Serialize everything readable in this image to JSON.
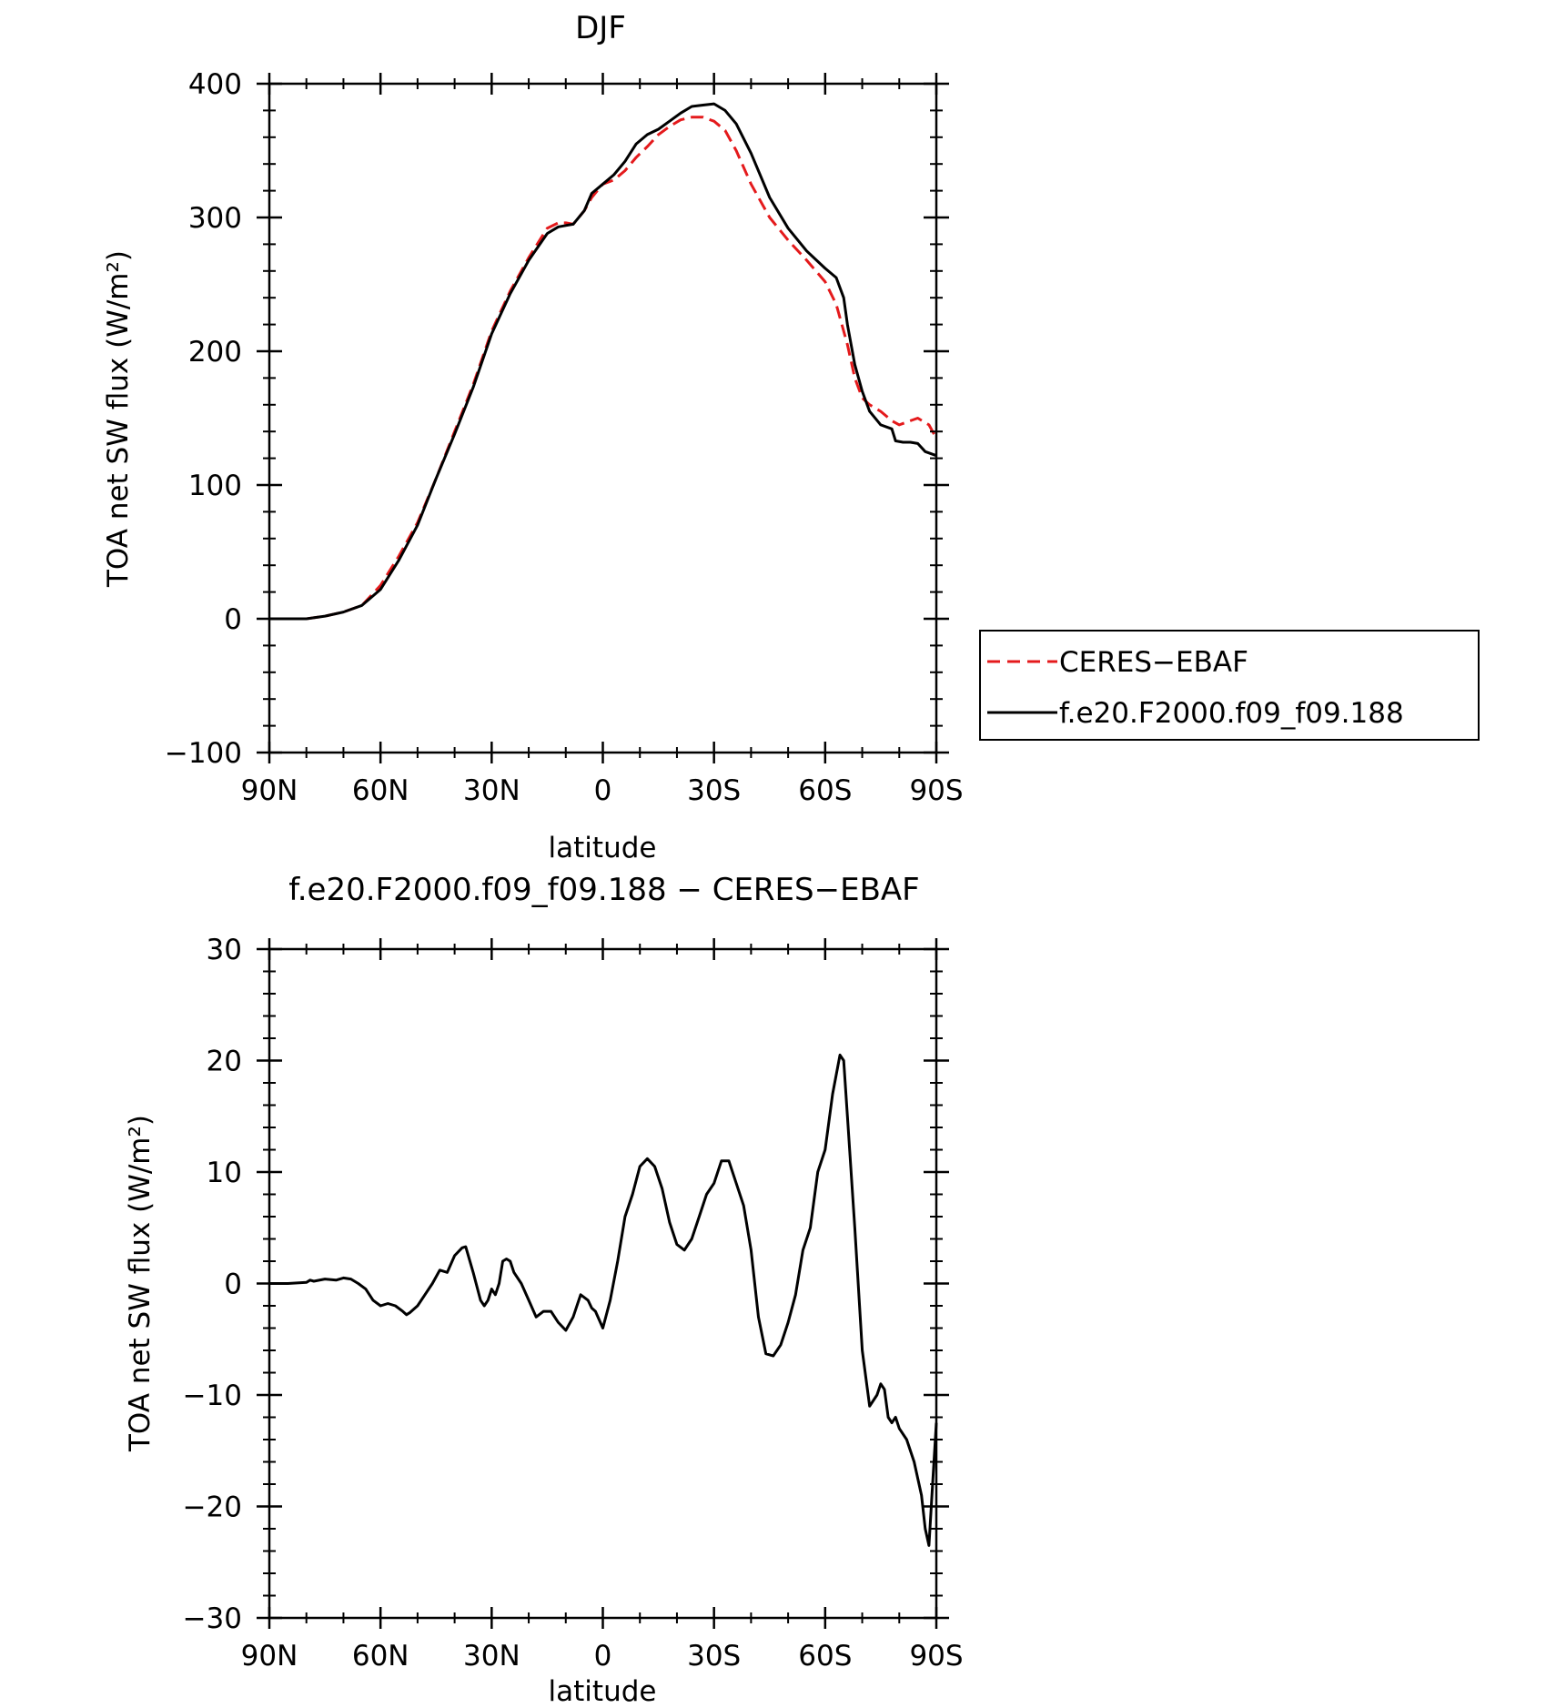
{
  "chart_data": [
    {
      "type": "line",
      "title": "DJF",
      "xlabel": "latitude",
      "ylabel": "TOA net SW flux (W/m²)",
      "xlim": [
        90,
        -90
      ],
      "ylim": [
        -100,
        400
      ],
      "xticks": [
        {
          "value": 90,
          "label": "90N"
        },
        {
          "value": 60,
          "label": "60N"
        },
        {
          "value": 30,
          "label": "30N"
        },
        {
          "value": 0,
          "label": "0"
        },
        {
          "value": -30,
          "label": "30S"
        },
        {
          "value": -60,
          "label": "60S"
        },
        {
          "value": -90,
          "label": "90S"
        }
      ],
      "yticks": [
        {
          "value": 400,
          "label": "400"
        },
        {
          "value": 300,
          "label": "300"
        },
        {
          "value": 200,
          "label": "200"
        },
        {
          "value": 100,
          "label": "100"
        },
        {
          "value": 0,
          "label": "0"
        },
        {
          "value": -100,
          "label": "−100"
        }
      ],
      "legend": {
        "placement": "right"
      },
      "series": [
        {
          "name": "CERES−EBAF",
          "color": "#e41a1c",
          "dash": "dashed",
          "x": [
            90,
            80,
            75,
            70,
            65,
            60,
            55,
            50,
            45,
            40,
            35,
            30,
            25,
            20,
            15,
            12,
            10,
            8,
            5,
            3,
            0,
            -3,
            -6,
            -9,
            -12,
            -15,
            -18,
            -21,
            -24,
            -27,
            -30,
            -33,
            -36,
            -40,
            -45,
            -50,
            -55,
            -60,
            -63,
            -66,
            -68,
            -70,
            -72,
            -75,
            -78,
            -80,
            -83,
            -85,
            -88,
            -90
          ],
          "y": [
            0,
            0,
            2,
            5,
            10,
            25,
            47,
            72,
            105,
            140,
            175,
            215,
            245,
            270,
            292,
            296,
            296,
            295,
            305,
            315,
            325,
            328,
            335,
            345,
            353,
            362,
            368,
            373,
            375,
            375,
            372,
            365,
            350,
            325,
            300,
            283,
            268,
            252,
            235,
            205,
            180,
            165,
            160,
            155,
            148,
            145,
            148,
            150,
            145,
            135
          ]
        },
        {
          "name": "f.e20.F2000.f09_f09.188",
          "color": "#000000",
          "dash": "solid",
          "x": [
            90,
            80,
            75,
            70,
            65,
            60,
            55,
            50,
            45,
            40,
            35,
            30,
            25,
            20,
            15,
            12,
            10,
            8,
            5,
            3,
            0,
            -3,
            -6,
            -9,
            -12,
            -15,
            -18,
            -21,
            -24,
            -27,
            -30,
            -33,
            -36,
            -40,
            -45,
            -50,
            -55,
            -60,
            -63,
            -65,
            -66,
            -68,
            -70,
            -72,
            -75,
            -78,
            -79,
            -81,
            -83,
            -85,
            -87,
            -90
          ],
          "y": [
            0,
            0,
            2,
            5,
            10,
            22,
            44,
            70,
            105,
            138,
            173,
            213,
            243,
            268,
            288,
            293,
            294,
            295,
            305,
            318,
            325,
            332,
            342,
            355,
            362,
            366,
            372,
            378,
            383,
            384,
            385,
            380,
            370,
            348,
            315,
            292,
            275,
            262,
            255,
            240,
            220,
            190,
            170,
            155,
            145,
            142,
            133,
            132,
            132,
            131,
            125,
            122
          ]
        }
      ]
    },
    {
      "type": "line",
      "title": "f.e20.F2000.f09_f09.188 − CERES−EBAF",
      "xlabel": "latitude",
      "ylabel": "TOA net SW flux (W/m²)",
      "xlim": [
        90,
        -90
      ],
      "ylim": [
        -30,
        30
      ],
      "xticks": [
        {
          "value": 90,
          "label": "90N"
        },
        {
          "value": 60,
          "label": "60N"
        },
        {
          "value": 30,
          "label": "30N"
        },
        {
          "value": 0,
          "label": "0"
        },
        {
          "value": -30,
          "label": "30S"
        },
        {
          "value": -60,
          "label": "60S"
        },
        {
          "value": -90,
          "label": "90S"
        }
      ],
      "yticks": [
        {
          "value": 30,
          "label": "30"
        },
        {
          "value": 20,
          "label": "20"
        },
        {
          "value": 10,
          "label": "10"
        },
        {
          "value": 0,
          "label": "0"
        },
        {
          "value": -10,
          "label": "−10"
        },
        {
          "value": -20,
          "label": "−20"
        },
        {
          "value": -30,
          "label": "−30"
        }
      ],
      "series": [
        {
          "color": "#000000",
          "dash": "solid",
          "x": [
            90,
            85,
            80,
            79,
            78,
            75,
            72,
            70,
            68,
            66,
            64,
            62,
            60,
            58,
            56,
            54,
            53,
            52,
            50,
            48,
            46,
            44,
            42,
            40,
            38,
            37,
            35,
            33,
            32,
            31,
            30,
            29,
            28,
            27,
            26,
            25,
            24,
            22,
            20,
            18,
            16,
            14,
            12,
            10,
            8,
            6,
            4,
            3,
            2,
            0,
            -2,
            -4,
            -6,
            -8,
            -10,
            -12,
            -14,
            -16,
            -18,
            -20,
            -22,
            -24,
            -26,
            -28,
            -30,
            -32,
            -34,
            -36,
            -38,
            -40,
            -42,
            -44,
            -46,
            -48,
            -50,
            -52,
            -54,
            -56,
            -58,
            -60,
            -62,
            -64,
            -65,
            -66,
            -68,
            -70,
            -72,
            -74,
            -75,
            -76,
            -77,
            -78,
            -79,
            -80,
            -82,
            -84,
            -86,
            -87,
            -88,
            -89,
            -90
          ],
          "y": [
            0,
            0,
            0.1,
            0.3,
            0.2,
            0.4,
            0.3,
            0.5,
            0.4,
            0,
            -0.5,
            -1.5,
            -2,
            -1.8,
            -2,
            -2.5,
            -2.8,
            -2.6,
            -2,
            -1,
            0,
            1.2,
            1,
            2.5,
            3.2,
            3.3,
            1,
            -1.5,
            -2,
            -1.5,
            -0.5,
            -1,
            0,
            2,
            2.2,
            2,
            1,
            0,
            -1.5,
            -3,
            -2.5,
            -2.5,
            -3.5,
            -4.2,
            -3,
            -1,
            -1.5,
            -2.2,
            -2.5,
            -4,
            -1.5,
            2,
            6,
            8,
            10.5,
            11.2,
            10.5,
            8.5,
            5.5,
            3.5,
            3,
            4,
            6,
            8,
            9,
            11,
            11,
            9,
            7,
            3,
            -3,
            -6.3,
            -6.5,
            -5.5,
            -3.5,
            -1,
            3,
            5,
            10,
            12,
            17,
            20.5,
            20,
            15,
            5,
            -6,
            -11,
            -10,
            -9,
            -9.5,
            -12,
            -12.5,
            -12,
            -13,
            -14,
            -16,
            -19,
            -22,
            -23.5,
            -18,
            -12.5
          ]
        }
      ]
    }
  ]
}
